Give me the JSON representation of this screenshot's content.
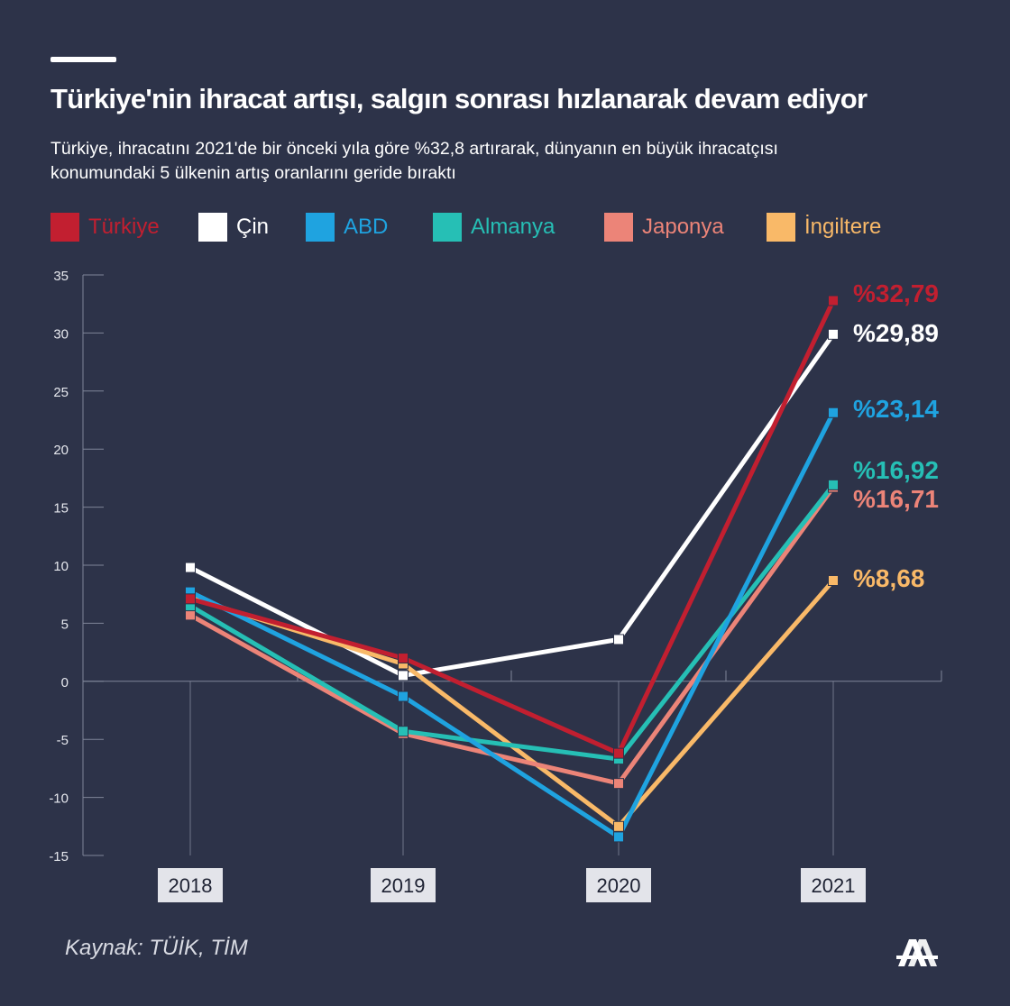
{
  "header": {
    "title": "Türkiye'nin ihracat artışı, salgın sonrası hızlanarak devam ediyor",
    "subtitle": "Türkiye, ihracatını 2021'de bir önceki yıla göre %32,8 artırarak, dünyanın en büyük ihracatçısı konumundaki 5 ülkenin artış oranlarını geride bıraktı"
  },
  "footer": {
    "source": "Kaynak: TÜİK, TİM",
    "logo": "AA",
    "logo_icon": "aa-logo-icon"
  },
  "colors": {
    "background": "#2d3349",
    "axis": "#7f8599",
    "text": "#ffffff"
  },
  "chart_data": {
    "type": "line",
    "categories": [
      "2018",
      "2019",
      "2020",
      "2021"
    ],
    "ylim": [
      -15,
      35
    ],
    "yticks": [
      35,
      30,
      25,
      20,
      15,
      10,
      5,
      0,
      -5,
      -10,
      -15
    ],
    "grid": false,
    "legend_position": "top",
    "series": [
      {
        "name": "Çin",
        "color": "#ffffff",
        "values": [
          9.8,
          0.5,
          3.6,
          29.89
        ],
        "end_label": "%29,89"
      },
      {
        "name": "İngiltere",
        "color": "#f9b968",
        "values": [
          7.2,
          1.5,
          -12.5,
          8.68
        ],
        "end_label": "%8,68"
      },
      {
        "name": "Japonya",
        "color": "#ec8478",
        "values": [
          5.7,
          -4.5,
          -8.8,
          16.71
        ],
        "end_label": "%16,71"
      },
      {
        "name": "Almanya",
        "color": "#26bfb5",
        "values": [
          6.5,
          -4.3,
          -6.7,
          16.92
        ],
        "end_label": "%16,92"
      },
      {
        "name": "ABD",
        "color": "#1fa3e0",
        "values": [
          7.7,
          -1.3,
          -13.4,
          23.14
        ],
        "end_label": "%23,14"
      },
      {
        "name": "Türkiye",
        "color": "#c21f30",
        "values": [
          7.1,
          2.0,
          -6.2,
          32.79
        ],
        "end_label": "%32,79"
      }
    ],
    "legend_order": [
      "Türkiye",
      "Çin",
      "ABD",
      "Almanya",
      "Japonya",
      "İngiltere"
    ]
  }
}
